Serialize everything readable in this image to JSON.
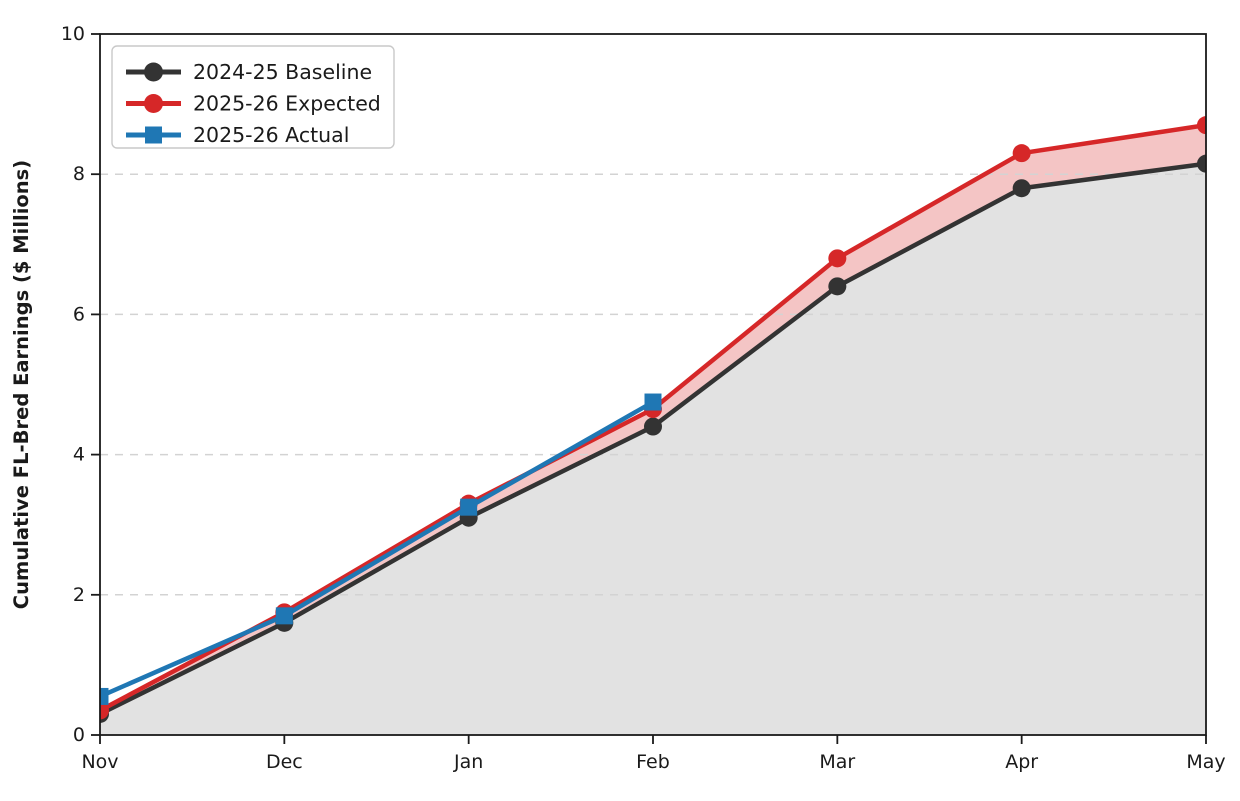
{
  "chart_data": {
    "type": "line",
    "title": "",
    "xlabel": "",
    "ylabel": "Cumulative FL-Bred Earnings ($ Millions)",
    "categories": [
      "Nov",
      "Dec",
      "Jan",
      "Feb",
      "Mar",
      "Apr",
      "May"
    ],
    "ylim": [
      0,
      10
    ],
    "yticks": [
      0,
      2,
      4,
      6,
      8,
      10
    ],
    "grid": "horizontal-dashed",
    "legend_position": "upper-left",
    "series": [
      {
        "name": "2024-25 Baseline",
        "color": "#333333",
        "marker": "circle",
        "values": [
          0.3,
          1.6,
          3.1,
          4.4,
          6.4,
          7.8,
          8.15
        ],
        "area_fill_below": "#e2e2e2"
      },
      {
        "name": "2025-26 Expected",
        "color": "#d62728",
        "marker": "circle",
        "values": [
          0.35,
          1.75,
          3.3,
          4.65,
          6.8,
          8.3,
          8.7
        ],
        "area_fill_to_baseline": "rgba(214,39,40,0.27)"
      },
      {
        "name": "2025-26 Actual",
        "color": "#1f77b4",
        "marker": "square",
        "values": [
          0.55,
          1.7,
          3.25,
          4.75,
          null,
          null,
          null
        ]
      }
    ],
    "colors": {
      "gridline": "#d3d3d3",
      "spine": "#1a1a1a",
      "legend_border": "#c9c9c9",
      "legend_background": "#ffffff"
    }
  }
}
